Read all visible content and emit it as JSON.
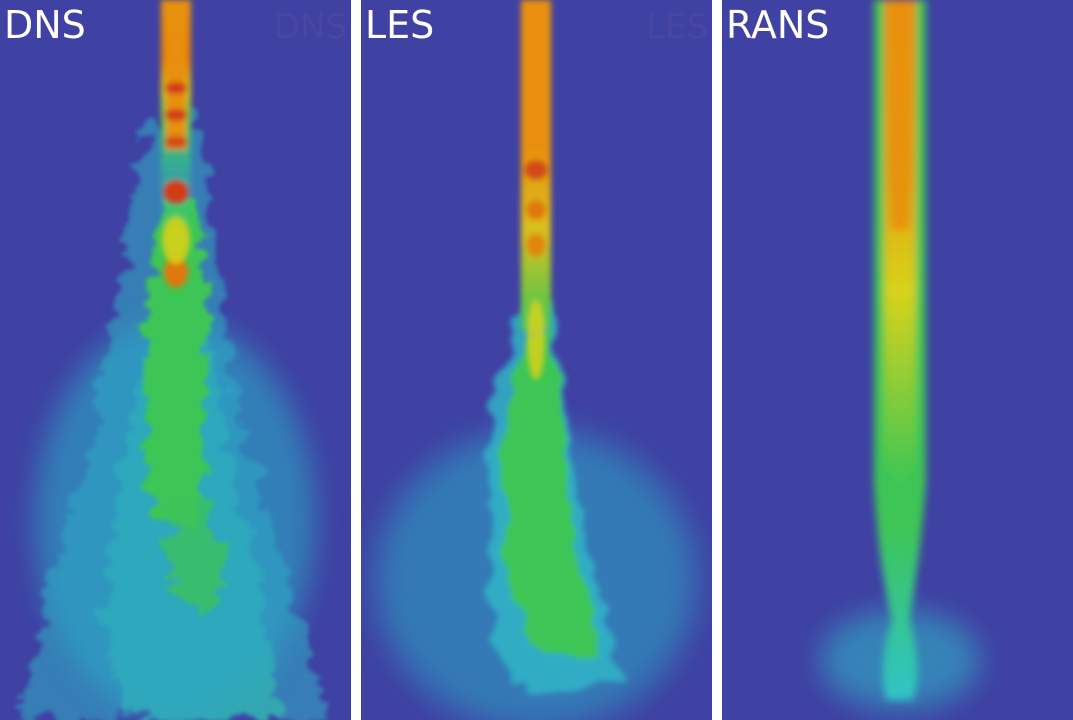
{
  "figure": {
    "panels": [
      {
        "label": "DNS",
        "watermark": "DNS"
      },
      {
        "label": "LES",
        "watermark": "LES"
      },
      {
        "label": "RANS",
        "watermark": ""
      }
    ],
    "colors": {
      "background": "#3f41a3",
      "separator": "#ffffff",
      "cyan": "#2fc4c8",
      "green": "#3dc655",
      "yellow": "#d8d21a",
      "orange": "#e8900a",
      "red": "#d23a12"
    }
  }
}
